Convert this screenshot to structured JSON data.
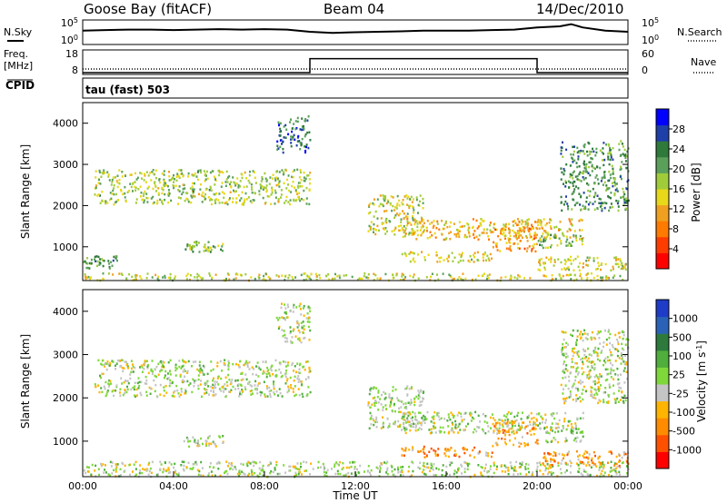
{
  "header": {
    "station": "Goose Bay (fitACF)",
    "beam": "Beam 04",
    "date": "14/Dec/2010"
  },
  "strip_labels": {
    "nsky": "N.Sky",
    "nsearch": "N.Search",
    "freq_line1": "Freq.",
    "freq_line2": "[MHz]",
    "nave": "Nave",
    "cpid": "CPID",
    "cpid_value": "tau (fast) 503"
  },
  "chart_data": [
    {
      "id": "noise",
      "type": "line",
      "left_ticks": [
        "10^5",
        "10^0"
      ],
      "right_ticks": [
        "10^5",
        "10^0"
      ],
      "series": [
        {
          "name": "N.Sky",
          "x_hours": [
            0,
            1,
            2,
            3,
            4,
            5,
            6,
            7,
            8,
            9,
            10,
            11,
            12,
            13,
            14,
            15,
            16,
            17,
            18,
            19,
            20,
            21,
            21.5,
            22,
            23,
            24
          ],
          "level": [
            0.55,
            0.58,
            0.6,
            0.6,
            0.58,
            0.6,
            0.62,
            0.6,
            0.62,
            0.6,
            0.5,
            0.45,
            0.48,
            0.5,
            0.52,
            0.55,
            0.55,
            0.55,
            0.58,
            0.6,
            0.7,
            0.75,
            0.85,
            0.7,
            0.55,
            0.5
          ]
        }
      ]
    },
    {
      "id": "freq_nave",
      "type": "line",
      "left_ticks": [
        "18",
        "8"
      ],
      "right_ticks": [
        "60",
        "0"
      ],
      "series": [
        {
          "name": "Freq.",
          "x_hours": [
            0,
            10,
            10,
            20,
            20,
            24
          ],
          "values": [
            8,
            8,
            15,
            15,
            8,
            8
          ]
        },
        {
          "name": "Nave",
          "x_hours": [
            0,
            24
          ],
          "values": [
            11,
            11
          ]
        }
      ]
    },
    {
      "id": "power",
      "type": "heatmap",
      "x_range_hours": [
        0,
        24
      ],
      "y_range_km": [
        180,
        4500
      ],
      "ylabel": "Slant Range [km]",
      "y_ticks": [
        1000,
        2000,
        3000,
        4000
      ],
      "colorbar": {
        "label": "Power [dB]",
        "range": [
          0,
          32
        ],
        "ticks": [
          "4",
          "8",
          "12",
          "16",
          "20",
          "24",
          "28"
        ],
        "colors": [
          "#0000ff",
          "#1f3fa8",
          "#2f7a3a",
          "#5aa05a",
          "#a0cc3a",
          "#e8d81a",
          "#f0a020",
          "#ff7a00",
          "#ff3c00",
          "#ff0000"
        ]
      },
      "regions": [
        {
          "t": [
            0,
            24
          ],
          "r": [
            200,
            380
          ],
          "level": 0.5
        },
        {
          "t": [
            0,
            1.5
          ],
          "r": [
            500,
            800
          ],
          "level": 0.3
        },
        {
          "t": [
            0.5,
            10
          ],
          "r": [
            2050,
            2900
          ],
          "level": 0.45
        },
        {
          "t": [
            4.3,
            6.2
          ],
          "r": [
            900,
            1150
          ],
          "level": 0.4
        },
        {
          "t": [
            8.5,
            10
          ],
          "r": [
            3300,
            4200
          ],
          "level": 0.2
        },
        {
          "t": [
            12.5,
            15
          ],
          "r": [
            1300,
            2300
          ],
          "level": 0.5
        },
        {
          "t": [
            14,
            22
          ],
          "r": [
            1200,
            1700
          ],
          "level": 0.6
        },
        {
          "t": [
            14,
            18
          ],
          "r": [
            650,
            900
          ],
          "level": 0.55
        },
        {
          "t": [
            18,
            20
          ],
          "r": [
            900,
            1500
          ],
          "level": 0.7
        },
        {
          "t": [
            20,
            22
          ],
          "r": [
            1000,
            1350
          ],
          "level": 0.4
        },
        {
          "t": [
            21,
            24
          ],
          "r": [
            1900,
            3600
          ],
          "level": 0.3
        },
        {
          "t": [
            20,
            24
          ],
          "r": [
            450,
            800
          ],
          "level": 0.55
        }
      ]
    },
    {
      "id": "velocity",
      "type": "heatmap",
      "x_range_hours": [
        0,
        24
      ],
      "y_range_km": [
        180,
        4500
      ],
      "ylabel": "Slant Range [km]",
      "y_ticks": [
        1000,
        2000,
        3000,
        4000
      ],
      "xlabel": "Time UT",
      "x_ticks": [
        "00:00",
        "04:00",
        "08:00",
        "12:00",
        "16:00",
        "20:00",
        "00:00"
      ],
      "colorbar": {
        "label": "Velocity [m s^-1]",
        "ticks": [
          "1000",
          "500",
          "100",
          "25",
          "-25",
          "-100",
          "-500",
          "-1000"
        ],
        "colors": [
          "#1e3cc8",
          "#2a62b8",
          "#2d7a3c",
          "#4fae3c",
          "#7fd83a",
          "#c4c4c4",
          "#ffb400",
          "#ff8c00",
          "#ff5000",
          "#ff0000"
        ]
      },
      "regions": [
        {
          "t": [
            0,
            24
          ],
          "r": [
            200,
            550
          ],
          "level": 0.5
        },
        {
          "t": [
            0.5,
            10
          ],
          "r": [
            2050,
            2900
          ],
          "level": 0.5
        },
        {
          "t": [
            4.3,
            6.2
          ],
          "r": [
            900,
            1150
          ],
          "level": 0.5
        },
        {
          "t": [
            8.5,
            10
          ],
          "r": [
            3300,
            4200
          ],
          "level": 0.5
        },
        {
          "t": [
            12.5,
            15
          ],
          "r": [
            1300,
            2300
          ],
          "level": 0.5
        },
        {
          "t": [
            14,
            22
          ],
          "r": [
            1200,
            1700
          ],
          "level": 0.5
        },
        {
          "t": [
            14,
            18
          ],
          "r": [
            650,
            900
          ],
          "level": 0.75
        },
        {
          "t": [
            18,
            20
          ],
          "r": [
            900,
            1500
          ],
          "level": 0.7
        },
        {
          "t": [
            20,
            22
          ],
          "r": [
            1000,
            1350
          ],
          "level": 0.5
        },
        {
          "t": [
            21,
            24
          ],
          "r": [
            1900,
            3600
          ],
          "level": 0.5
        },
        {
          "t": [
            20,
            24
          ],
          "r": [
            450,
            800
          ],
          "level": 0.75
        }
      ]
    }
  ]
}
